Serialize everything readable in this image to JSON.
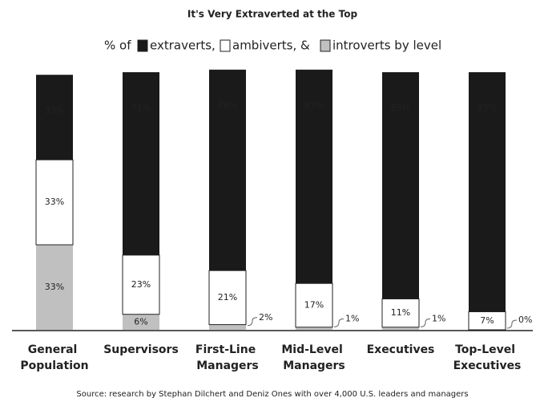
{
  "chart_data": {
    "type": "stacked-bar",
    "title": "It's Very Extraverted at the Top",
    "legend_title": "% of",
    "categories": [
      "General Population",
      "Supervisors",
      "First-Line Managers",
      "Mid-Level Managers",
      "Executives",
      "Top-Level Executives"
    ],
    "series": [
      {
        "name": "introverts by level",
        "color": "#c0c0c0",
        "values": [
          33,
          6,
          2,
          1,
          1,
          0
        ],
        "value_labels": [
          "33%",
          "6%",
          "2%",
          "1%",
          "1%",
          "0%"
        ]
      },
      {
        "name": "ambiverts, &",
        "color": "#ffffff",
        "values": [
          33,
          23,
          21,
          17,
          11,
          7
        ],
        "value_labels": [
          "33%",
          "23%",
          "21%",
          "17%",
          "11%",
          "7%"
        ]
      },
      {
        "name": "extraverts,",
        "color": "#1a1a1a",
        "values": [
          33,
          71,
          78,
          83,
          88,
          93
        ],
        "value_labels": [
          "33%",
          "71%",
          "78%",
          "83%",
          "88%",
          "93%"
        ]
      }
    ],
    "source": "Source: research by Stephan Dilchert and Deniz Ones with over 4,000 U.S. leaders and managers"
  }
}
